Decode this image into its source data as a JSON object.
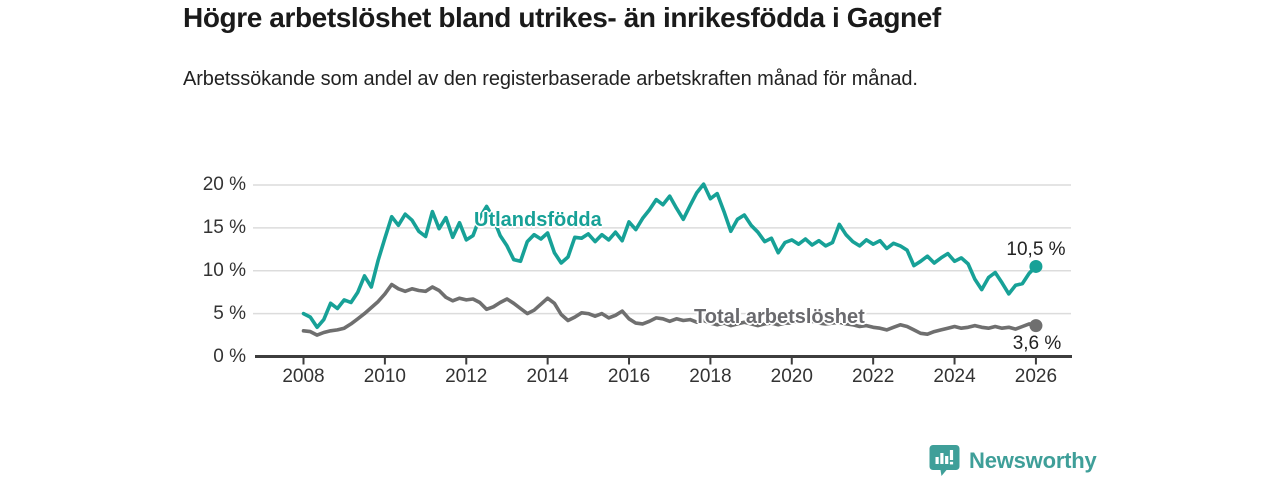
{
  "header": {
    "title": "Högre arbetslöshet bland utrikes- än inrikesfödda i Gagnef",
    "subtitle": "Arbetssökande som andel av den registerbaserade arbetskraften månad för månad."
  },
  "chart_data": {
    "type": "line",
    "title": "Högre arbetslöshet bland utrikes- än inrikesfödda i Gagnef",
    "subtitle": "Arbetssökande som andel av den registerbaserade arbetskraften månad för månad.",
    "xlabel": "",
    "ylabel": "",
    "ylim": [
      0,
      20
    ],
    "xlim": [
      2007.7,
      2026.9
    ],
    "grid": true,
    "legend_position": "inline-labels",
    "x_unit": "year, monthly observations",
    "x_start": 2008,
    "x_step_years": 0.16667,
    "yticks": [
      {
        "value": 0,
        "label": "0 %"
      },
      {
        "value": 5,
        "label": "5 %"
      },
      {
        "value": 10,
        "label": "10 %"
      },
      {
        "value": 15,
        "label": "15 %"
      },
      {
        "value": 20,
        "label": "20 %"
      }
    ],
    "xticks": [
      {
        "value": 2008,
        "label": "2008"
      },
      {
        "value": 2010,
        "label": "2010"
      },
      {
        "value": 2012,
        "label": "2012"
      },
      {
        "value": 2014,
        "label": "2014"
      },
      {
        "value": 2016,
        "label": "2016"
      },
      {
        "value": 2018,
        "label": "2018"
      },
      {
        "value": 2020,
        "label": "2020"
      },
      {
        "value": 2022,
        "label": "2022"
      },
      {
        "value": 2024,
        "label": "2024"
      },
      {
        "value": 2026,
        "label": "2026"
      }
    ],
    "series": [
      {
        "name": "Utlandsfödda",
        "color": "#17a197",
        "end_label": "10,5 %",
        "end_value": 10.5,
        "values": [
          5.0,
          4.6,
          3.4,
          4.3,
          6.2,
          5.6,
          6.6,
          6.3,
          7.5,
          9.4,
          8.1,
          11.2,
          13.8,
          16.3,
          15.3,
          16.6,
          15.9,
          14.6,
          14.0,
          16.9,
          14.9,
          16.2,
          13.9,
          15.6,
          13.6,
          14.1,
          16.2,
          17.5,
          16.1,
          14.1,
          12.9,
          11.3,
          11.1,
          13.4,
          14.2,
          13.7,
          14.4,
          12.1,
          10.9,
          11.6,
          13.9,
          13.8,
          14.3,
          13.4,
          14.2,
          13.6,
          14.5,
          13.5,
          15.7,
          14.8,
          16.1,
          17.1,
          18.3,
          17.7,
          18.7,
          17.3,
          16.0,
          17.6,
          19.1,
          20.1,
          18.4,
          19.0,
          16.9,
          14.6,
          16.0,
          16.5,
          15.3,
          14.5,
          13.4,
          13.8,
          12.1,
          13.3,
          13.6,
          13.1,
          13.7,
          13.0,
          13.5,
          12.9,
          13.3,
          15.4,
          14.2,
          13.4,
          12.9,
          13.6,
          13.1,
          13.5,
          12.6,
          13.2,
          12.9,
          12.4,
          10.6,
          11.1,
          11.7,
          10.9,
          11.5,
          12.0,
          11.1,
          11.5,
          10.8,
          9.0,
          7.8,
          9.2,
          9.8,
          8.6,
          7.3,
          8.3,
          8.5,
          9.7,
          10.5
        ]
      },
      {
        "name": "Total arbetslöshet",
        "color": "#6f6f6f",
        "end_label": "3,6 %",
        "end_value": 3.6,
        "values": [
          3.0,
          2.9,
          2.5,
          2.8,
          3.0,
          3.1,
          3.3,
          3.8,
          4.4,
          5.0,
          5.7,
          6.4,
          7.3,
          8.4,
          7.9,
          7.6,
          7.9,
          7.7,
          7.6,
          8.1,
          7.7,
          6.9,
          6.5,
          6.8,
          6.6,
          6.7,
          6.3,
          5.5,
          5.8,
          6.3,
          6.7,
          6.2,
          5.6,
          5.0,
          5.4,
          6.1,
          6.8,
          6.2,
          4.9,
          4.2,
          4.6,
          5.1,
          5.0,
          4.7,
          5.0,
          4.5,
          4.8,
          5.3,
          4.4,
          3.9,
          3.8,
          4.1,
          4.5,
          4.4,
          4.1,
          4.4,
          4.2,
          4.3,
          4.0,
          4.2,
          3.9,
          3.7,
          3.9,
          3.6,
          3.8,
          4.0,
          3.8,
          3.6,
          3.8,
          3.9,
          3.7,
          3.9,
          3.9,
          4.2,
          4.4,
          4.1,
          3.9,
          3.8,
          3.9,
          4.0,
          3.8,
          3.7,
          3.5,
          3.6,
          3.4,
          3.3,
          3.1,
          3.4,
          3.7,
          3.5,
          3.1,
          2.7,
          2.6,
          2.9,
          3.1,
          3.3,
          3.5,
          3.3,
          3.4,
          3.6,
          3.4,
          3.3,
          3.5,
          3.3,
          3.4,
          3.2,
          3.5,
          3.8,
          3.6
        ]
      }
    ]
  },
  "style": {
    "gridline_color": "#dcdcdc",
    "axis_color": "#3d3d3d",
    "tick_label_color": "#333333",
    "end_label_color": "#222222",
    "brand_color": "#3f9f99"
  },
  "footer": {
    "brand": "Newsworthy"
  }
}
